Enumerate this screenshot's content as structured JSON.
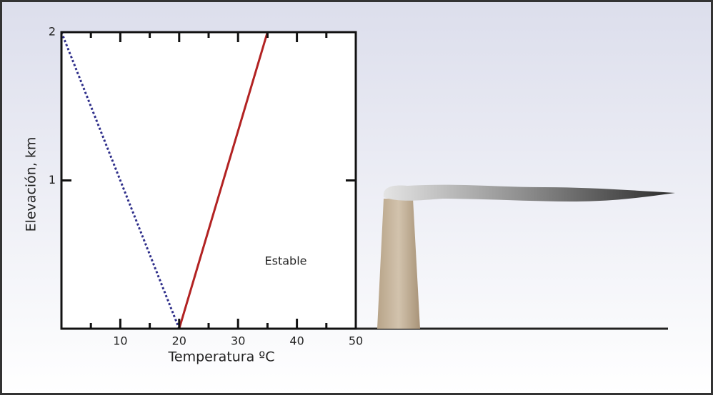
{
  "chart_data": {
    "type": "line",
    "x_label": "Temperatura ºC",
    "y_label": "Elevación, km",
    "annotation": "Estable",
    "xlim": [
      0,
      50
    ],
    "ylim": [
      0,
      2
    ],
    "xticks": [
      10,
      20,
      30,
      40,
      50
    ],
    "xticks_minor": [
      5,
      15,
      25,
      35,
      45
    ],
    "yticks": [
      1,
      2
    ],
    "series": [
      {
        "x": [
          0,
          20
        ],
        "values": [
          2,
          0
        ],
        "color": "#2e2e8a",
        "style": "dotted"
      },
      {
        "x": [
          20,
          35
        ],
        "values": [
          0,
          2
        ],
        "color": "#b22222",
        "style": "solid"
      }
    ]
  }
}
